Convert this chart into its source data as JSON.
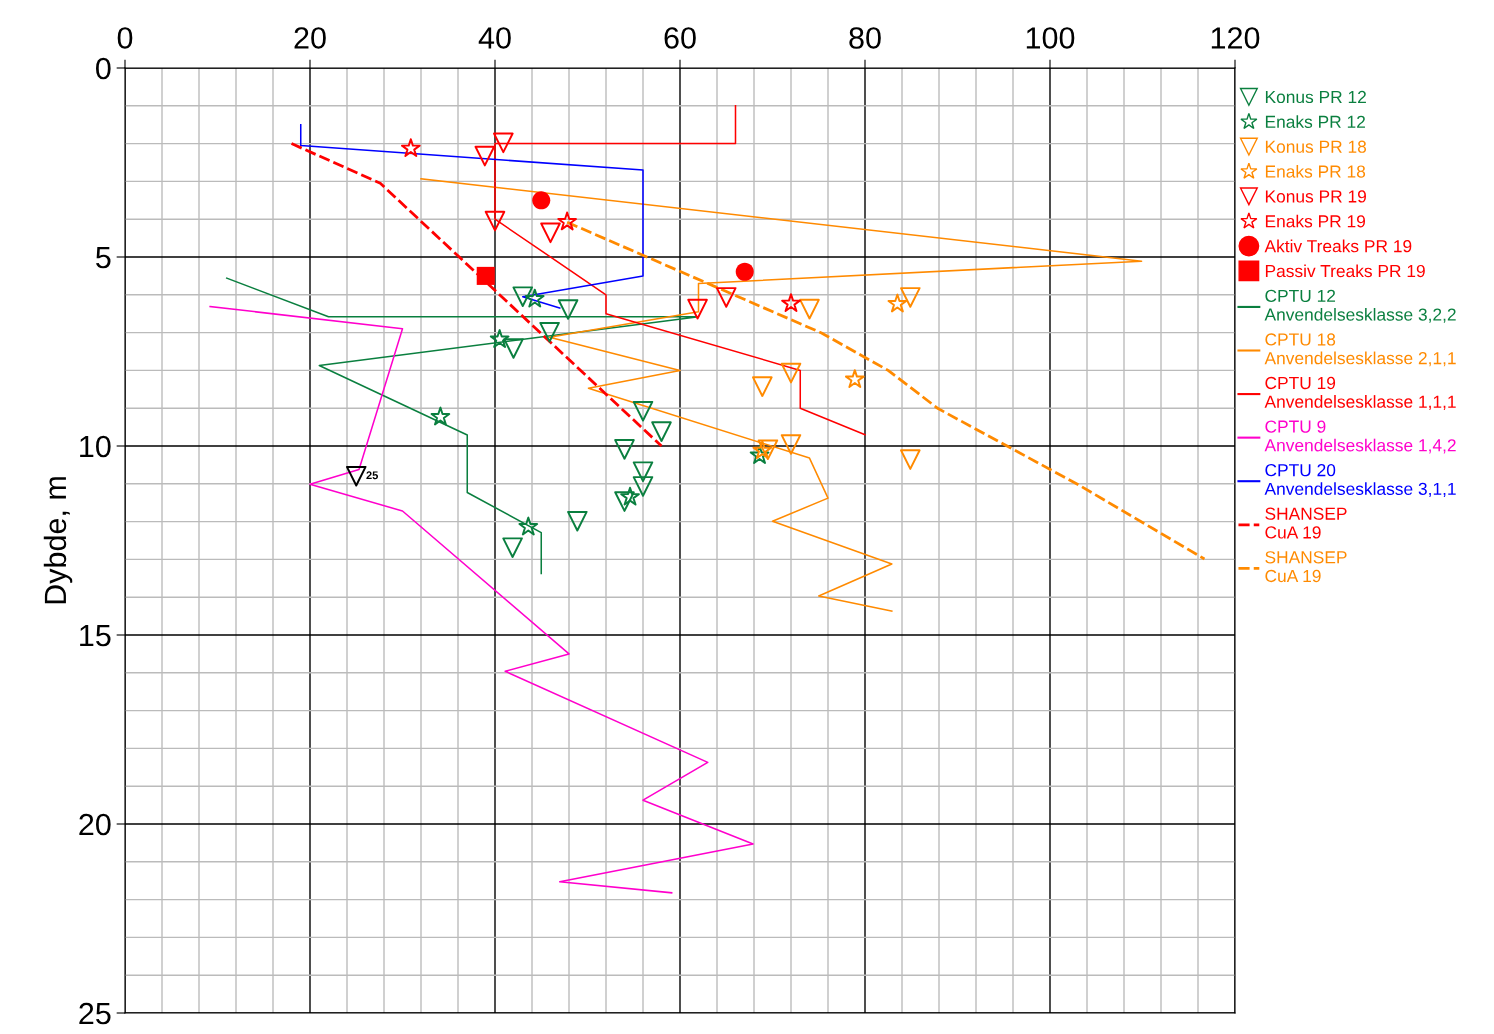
{
  "chart_data": {
    "type": "line",
    "ylabel": "Dybde, m",
    "annotations": [
      {
        "text": "25",
        "x": 25.0,
        "y": 10.8
      }
    ],
    "xlim": [
      0,
      120
    ],
    "xticks": [
      0,
      20,
      40,
      60,
      80,
      100,
      120
    ],
    "ylim": [
      25,
      0
    ],
    "yticks": [
      0,
      5,
      10,
      15,
      20,
      25
    ],
    "grid": true,
    "legend": "right",
    "series": [
      {
        "name": "Konus PR 12",
        "type": "scatter",
        "marker": "triangle",
        "color": "#0a7f3f",
        "x": [
          43.0,
          47.9,
          45.9,
          42.0,
          56.0,
          58.0,
          54.0,
          56.0,
          56.0,
          54.0,
          48.9,
          41.9
        ],
        "values": [
          6.05,
          6.39,
          6.99,
          7.42,
          9.08,
          9.62,
          10.09,
          10.68,
          11.07,
          11.47,
          11.99,
          12.69
        ]
      },
      {
        "name": "Enaks PR 12",
        "type": "scatter",
        "marker": "star",
        "color": "#0a7f3f",
        "x": [
          34.1,
          44.3,
          40.5,
          54.6,
          43.6,
          68.6
        ],
        "values": [
          9.23,
          6.11,
          7.18,
          11.35,
          12.14,
          10.25
        ]
      },
      {
        "name": "Konus PR 18",
        "type": "scatter",
        "marker": "triangle",
        "color": "#ff8a00",
        "x": [
          74.0,
          84.9,
          72.0,
          68.9,
          72.0,
          84.9,
          69.5
        ],
        "values": [
          6.38,
          6.07,
          8.07,
          8.43,
          9.96,
          10.36,
          10.1
        ]
      },
      {
        "name": "Enaks PR 18",
        "type": "scatter",
        "marker": "star",
        "color": "#ff8a00",
        "x": [
          83.5,
          78.9,
          68.9
        ],
        "values": [
          6.24,
          8.24,
          10.12
        ]
      },
      {
        "name": "Konus PR 19",
        "type": "scatter",
        "marker": "triangle",
        "color": "#ff0000",
        "x": [
          40.9,
          38.9,
          40.0,
          46.0,
          61.9,
          65.0
        ],
        "values": [
          1.98,
          2.33,
          4.05,
          4.36,
          6.38,
          6.07
        ]
      },
      {
        "name": "Enaks PR 19",
        "type": "scatter",
        "marker": "star",
        "color": "#ff0000",
        "x": [
          30.9,
          47.8,
          72.0
        ],
        "values": [
          2.13,
          4.07,
          6.23
        ]
      },
      {
        "name": "Aktiv Treaks PR 19",
        "type": "scatter",
        "marker": "circle",
        "color": "#ff0000",
        "x": [
          45.0,
          67.0
        ],
        "values": [
          3.5,
          5.39
        ]
      },
      {
        "name": "Passiv Treaks PR 19",
        "type": "scatter",
        "marker": "square",
        "color": "#ff0000",
        "x": [
          39.0
        ],
        "values": [
          5.5
        ]
      },
      {
        "name": "CPTU 12\nAnvendelsesklasse 3,2,2",
        "line_style": "solid",
        "color": "#0a7f3f",
        "x": [
          11.0,
          22.0,
          62.0,
          21.0,
          37.0,
          37.0,
          45.0,
          45.0
        ],
        "values": [
          5.56,
          6.58,
          6.58,
          7.87,
          9.71,
          11.23,
          12.29,
          13.37
        ]
      },
      {
        "name": "CPTU 18\nAnvendelsesklasse 2,1,1",
        "line_style": "solid",
        "color": "#ff8a00",
        "x": [
          32.0,
          109.9,
          62.0,
          62.0,
          45.9,
          60.0,
          50.1,
          74.0,
          76.0,
          70.0,
          82.9,
          75.0,
          82.9
        ],
        "values": [
          2.93,
          5.11,
          5.7,
          6.45,
          7.12,
          8.0,
          8.47,
          10.32,
          11.38,
          11.99,
          13.12,
          13.97,
          14.37
        ]
      },
      {
        "name": "CPTU 19\nAnvendelsesklasse 1,1,1",
        "line_style": "solid",
        "color": "#ff0000",
        "x": [
          66.0,
          66.0,
          40.0,
          40.0,
          52.0,
          52.0,
          73.0,
          73.0,
          80.0
        ],
        "values": [
          1.0,
          2.0,
          2.0,
          4.0,
          6.0,
          6.5,
          8.0,
          9.0,
          9.7
        ]
      },
      {
        "name": "CPTU 9\nAnvendelsesklasse 1,4,2",
        "line_style": "solid",
        "color": "#ff00cc",
        "x": [
          9.2,
          30.0,
          25.3,
          20.0,
          30.0,
          48.0,
          41.1,
          63.0,
          56.0,
          67.9,
          47.0,
          59.1
        ],
        "values": [
          6.31,
          6.9,
          10.62,
          11.01,
          11.72,
          15.5,
          15.96,
          18.37,
          19.37,
          20.53,
          21.53,
          21.82
        ]
      },
      {
        "name": "CPTU 20\nAnvendelsesklasse 3,1,1",
        "line_style": "solid",
        "color": "#0000ff",
        "x": [
          19.0,
          19.0,
          56.0,
          56.0,
          43.0,
          47.0
        ],
        "values": [
          1.5,
          2.05,
          2.7,
          5.5,
          6.05,
          6.35
        ]
      },
      {
        "name": "SHANSEP\nCuA 19",
        "line_style": "dashed",
        "color": "#ff0000",
        "x": [
          18.0,
          27.6,
          58.0
        ],
        "values": [
          2.0,
          3.05,
          10.0
        ]
      },
      {
        "name": "SHANSEP\nCuA 19",
        "line_style": "dashed",
        "color": "#ff8a00",
        "x": [
          47.8,
          75.3,
          82.5,
          87.9,
          103.1,
          116.7
        ],
        "values": [
          4.08,
          7.01,
          8.0,
          9.01,
          11.03,
          12.99
        ]
      },
      {
        "type": "scatter",
        "marker": "triangle",
        "color": "#000000",
        "x": [
          25.0
        ],
        "values": [
          10.8
        ]
      }
    ]
  }
}
